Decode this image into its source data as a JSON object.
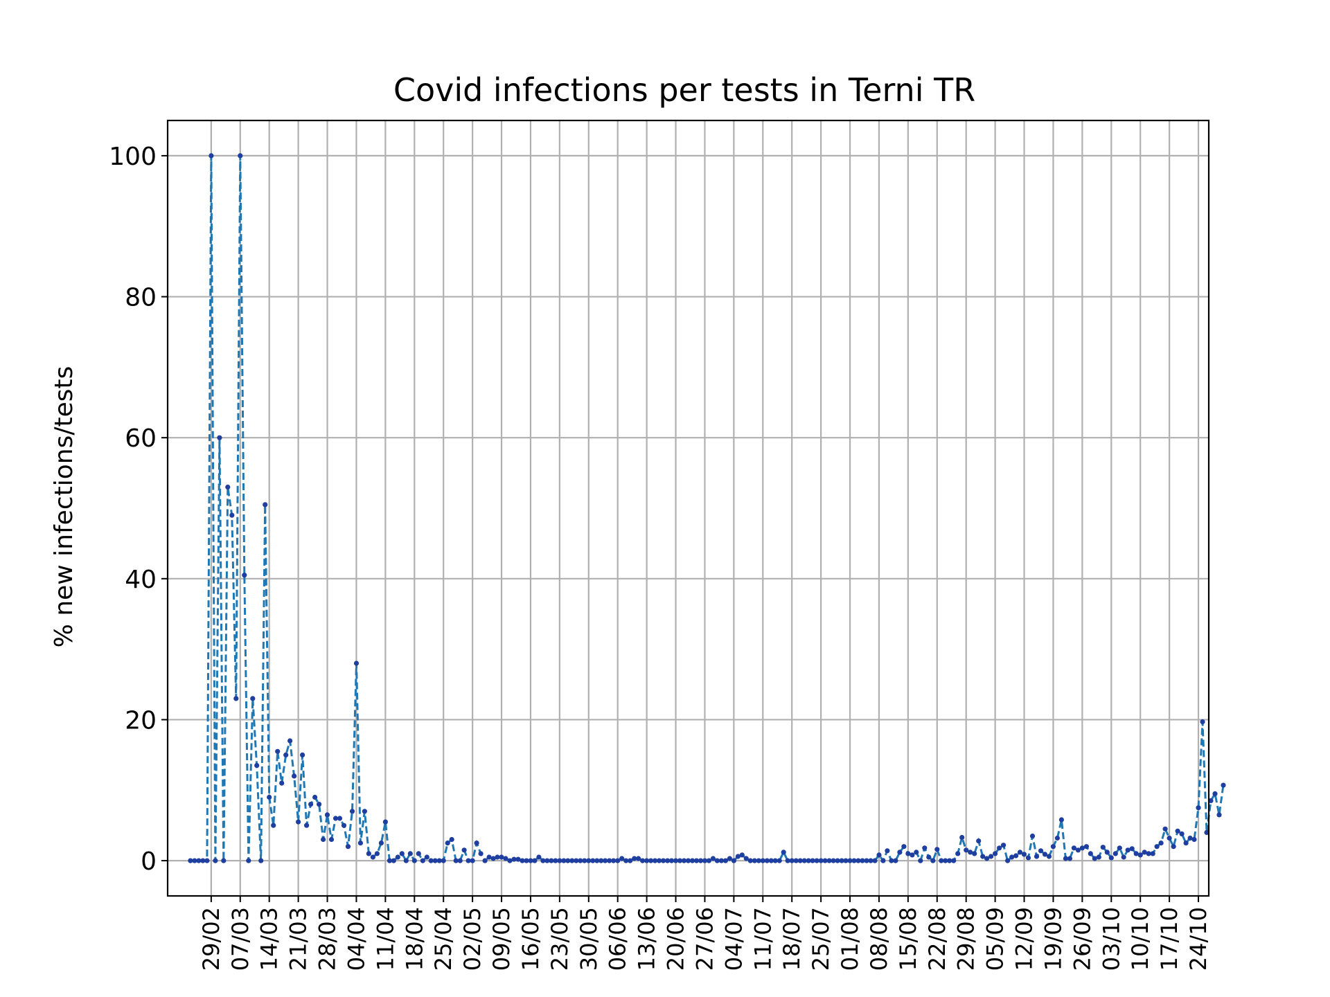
{
  "chart_data": {
    "type": "line",
    "title": "Covid infections per tests in Terni TR",
    "ylabel": "% new infections/tests",
    "xlabel": "",
    "ylim": [
      -5,
      105
    ],
    "xlim": [
      -5.5,
      245.5
    ],
    "yticks": [
      0,
      20,
      40,
      60,
      80,
      100
    ],
    "grid": true,
    "legend": "none",
    "line_style": "dashed",
    "marker": "dot",
    "color": "#1f77b4",
    "marker_color": "#1f3fa0",
    "start_date": "2020-02-24",
    "xtick_labels": [
      "29/02",
      "07/03",
      "14/03",
      "21/03",
      "28/03",
      "04/04",
      "11/04",
      "18/04",
      "25/04",
      "02/05",
      "09/05",
      "16/05",
      "23/05",
      "30/05",
      "06/06",
      "13/06",
      "20/06",
      "27/06",
      "04/07",
      "11/07",
      "18/07",
      "25/07",
      "01/08",
      "08/08",
      "15/08",
      "22/08",
      "29/08",
      "05/09",
      "12/09",
      "19/09",
      "26/09",
      "03/10",
      "10/10",
      "17/10",
      "24/10"
    ],
    "series": [
      {
        "values": [
          0,
          0,
          0,
          0,
          0,
          100,
          0,
          60,
          0,
          53,
          49,
          23,
          100,
          40.5,
          0,
          23,
          13.5,
          0,
          50.5,
          9,
          5,
          15.5,
          11,
          15,
          17,
          12,
          5.5,
          15,
          5,
          8,
          9,
          8,
          3,
          6.5,
          3,
          6,
          6,
          5,
          2,
          7,
          28,
          2.5,
          7,
          1,
          0.5,
          1,
          2.5,
          5.5,
          0,
          0,
          0.5,
          1,
          0,
          1,
          0,
          1,
          0,
          0.5,
          0,
          0,
          0,
          0,
          2.5,
          3,
          0,
          0,
          1.5,
          0,
          0,
          2.5,
          1,
          0,
          0.5,
          0.3,
          0.5,
          0.5,
          0.3,
          0,
          0.2,
          0.2,
          0,
          0,
          0,
          0,
          0.5,
          0,
          0,
          0,
          0,
          0,
          0,
          0,
          0,
          0,
          0,
          0,
          0,
          0,
          0,
          0,
          0,
          0,
          0,
          0,
          0.3,
          0,
          0,
          0.3,
          0.3,
          0,
          0,
          0,
          0,
          0,
          0,
          0,
          0,
          0,
          0,
          0,
          0,
          0,
          0,
          0,
          0,
          0,
          0.3,
          0,
          0,
          0,
          0.3,
          0,
          0.6,
          0.8,
          0.3,
          0,
          0,
          0,
          0,
          0,
          0,
          0,
          0,
          1.2,
          0,
          0,
          0,
          0,
          0,
          0,
          0,
          0,
          0,
          0,
          0,
          0,
          0,
          0,
          0,
          0,
          0,
          0,
          0,
          0,
          0,
          0,
          0.8,
          0,
          1.4,
          0,
          0,
          1.2,
          2,
          1,
          0.8,
          1.2,
          0,
          1.8,
          0.5,
          0,
          1.6,
          0,
          0,
          0,
          0,
          1,
          3.3,
          1.5,
          1.2,
          1,
          2.8,
          0.6,
          0.3,
          0.6,
          1,
          1.8,
          2.2,
          0,
          0.5,
          0.7,
          1.2,
          0.9,
          0.4,
          3.5,
          0.6,
          1.4,
          0.9,
          0.6,
          2,
          3.2,
          5.8,
          0.3,
          0.3,
          1.8,
          1.5,
          1.8,
          2,
          1,
          0.3,
          0.5,
          1.9,
          1.2,
          0.4,
          1,
          1.8,
          0.5,
          1.5,
          1.7,
          1,
          0.8,
          1.2,
          1,
          1,
          2,
          2.5,
          4.5,
          3.2,
          2,
          4.2,
          3.8,
          2.5,
          3.2,
          3,
          7.5,
          19.7,
          4,
          8.5,
          9.5,
          6.5,
          10.7
        ]
      }
    ]
  }
}
